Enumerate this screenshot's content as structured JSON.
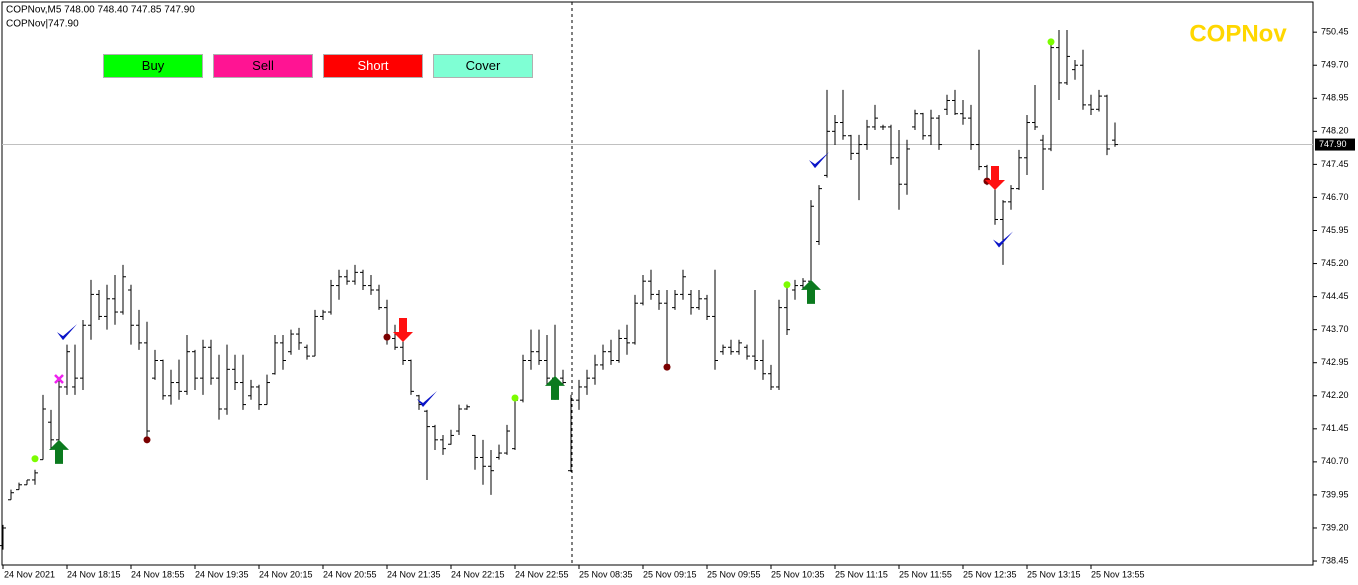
{
  "header": {
    "info": "COPNov,M5  748.00 748.40 747.85 747.90",
    "indicator": "COPNov|747.90"
  },
  "buttons": [
    {
      "label": "Buy",
      "color": "#00ff00",
      "text_color": "#000000"
    },
    {
      "label": "Sell",
      "color": "#ff1493",
      "text_color": "#000000"
    },
    {
      "label": "Short",
      "color": "#ff0000",
      "text_color": "#ffffff"
    },
    {
      "label": "Cover",
      "color": "#7fffd4",
      "text_color": "#000000"
    }
  ],
  "chart_data": {
    "type": "ohlc",
    "title": "COPNov",
    "title_color": "#ffd700",
    "color": "#000000",
    "ylim": [
      738.36,
      751.18
    ],
    "yticks": [
      738.45,
      {
        "value": 739.2,
        "label": "739.20"
      },
      739.95,
      {
        "value": 740.7,
        "label": "740.70"
      },
      741.45,
      {
        "value": 742.2,
        "label": "742.20"
      },
      742.95,
      {
        "value": 743.7,
        "label": "743.70"
      },
      744.45,
      {
        "value": 745.2,
        "label": "745.20"
      },
      745.95,
      {
        "value": 746.7,
        "label": "746.70"
      },
      747.45,
      {
        "value": 748.2,
        "label": "748.20"
      },
      748.95,
      {
        "value": 749.7,
        "label": "749.70"
      },
      750.45
    ],
    "current_price": {
      "value": 747.9,
      "label": "747.90"
    },
    "period_separator": 71,
    "categories": [
      "24 Nov 2021",
      null,
      null,
      null,
      null,
      null,
      null,
      null,
      "24 Nov 18:15",
      null,
      null,
      null,
      null,
      null,
      null,
      null,
      "24 Nov 18:55",
      null,
      null,
      null,
      null,
      null,
      null,
      null,
      "24 Nov 19:35",
      null,
      null,
      null,
      null,
      null,
      null,
      null,
      "24 Nov 20:15",
      null,
      null,
      null,
      null,
      null,
      null,
      null,
      "24 Nov 20:55",
      null,
      null,
      null,
      null,
      null,
      null,
      null,
      "24 Nov 21:35",
      null,
      null,
      null,
      null,
      null,
      null,
      null,
      "24 Nov 22:15",
      null,
      null,
      null,
      null,
      null,
      null,
      null,
      "24 Nov 22:55",
      null,
      null,
      null,
      null,
      null,
      null,
      null,
      "25 Nov 08:35",
      null,
      null,
      null,
      null,
      null,
      null,
      null,
      "25 Nov 09:15",
      null,
      null,
      null,
      null,
      null,
      null,
      null,
      "25 Nov 09:55",
      null,
      null,
      null,
      null,
      null,
      null,
      null,
      "25 Nov 10:35",
      null,
      null,
      null,
      null,
      null,
      null,
      null,
      "25 Nov 11:15",
      null,
      null,
      null,
      null,
      null,
      null,
      null,
      "25 Nov 11:55",
      null,
      null,
      null,
      null,
      null,
      null,
      null,
      "25 Nov 12:35",
      null,
      null,
      null,
      null,
      null,
      null,
      null,
      "25 Nov 13:15",
      null,
      null,
      null,
      null,
      null,
      null,
      null,
      "25 Nov 13:55",
      null,
      null,
      null
    ],
    "ohlc": [
      [
        738.8,
        739.27,
        738.71,
        739.2
      ],
      [
        739.84,
        740.07,
        739.84,
        740.0
      ],
      [
        740.07,
        740.23,
        740.07,
        740.18
      ],
      [
        740.18,
        740.29,
        740.18,
        740.29
      ],
      [
        740.29,
        740.52,
        740.18,
        740.45
      ],
      [
        740.75,
        742.22,
        740.75,
        741.9
      ],
      [
        741.6,
        741.88,
        740.97,
        741.2
      ],
      [
        741.2,
        742.56,
        741.2,
        742.4
      ],
      [
        742.4,
        743.36,
        742.22,
        743.2
      ],
      [
        742.4,
        743.36,
        742.22,
        742.6
      ],
      [
        742.6,
        743.92,
        742.33,
        743.8
      ],
      [
        743.8,
        744.83,
        743.47,
        744.5
      ],
      [
        744.5,
        744.6,
        743.92,
        744.0
      ],
      [
        744.0,
        744.72,
        743.7,
        744.4
      ],
      [
        744.4,
        744.94,
        743.81,
        744.1
      ],
      [
        744.1,
        745.17,
        744.04,
        744.9
      ],
      [
        744.6,
        744.72,
        743.36,
        743.8
      ],
      [
        743.8,
        744.15,
        743.24,
        743.4
      ],
      [
        743.4,
        743.88,
        741.2,
        741.4
      ],
      [
        742.6,
        743.24,
        742.56,
        743.0
      ],
      [
        743.0,
        743.02,
        742.11,
        742.2
      ],
      [
        742.2,
        742.79,
        742.0,
        742.5
      ],
      [
        742.5,
        743.02,
        742.11,
        742.3
      ],
      [
        742.3,
        743.58,
        742.22,
        743.2
      ],
      [
        743.2,
        743.24,
        742.33,
        742.6
      ],
      [
        742.6,
        743.47,
        742.22,
        743.3
      ],
      [
        743.3,
        743.47,
        742.45,
        742.6
      ],
      [
        742.6,
        743.13,
        741.66,
        741.9
      ],
      [
        741.9,
        743.36,
        741.77,
        742.8
      ],
      [
        742.8,
        743.13,
        742.33,
        742.5
      ],
      [
        742.5,
        743.13,
        741.88,
        742.0
      ],
      [
        742.2,
        742.56,
        742.11,
        742.4
      ],
      [
        742.4,
        742.45,
        741.88,
        742.0
      ],
      [
        742.0,
        742.68,
        742.0,
        742.5
      ],
      [
        742.7,
        743.58,
        742.68,
        743.4
      ],
      [
        743.4,
        743.58,
        742.79,
        743.0
      ],
      [
        743.2,
        743.7,
        743.13,
        743.6
      ],
      [
        743.6,
        743.74,
        743.24,
        743.4
      ],
      [
        743.3,
        743.36,
        743.02,
        743.1
      ],
      [
        743.1,
        744.15,
        743.1,
        744.0
      ],
      [
        744.0,
        744.15,
        743.92,
        744.1
      ],
      [
        744.1,
        744.83,
        744.04,
        744.7
      ],
      [
        744.7,
        745.06,
        744.38,
        744.9
      ],
      [
        744.9,
        745.06,
        744.72,
        744.8
      ],
      [
        744.8,
        745.17,
        744.72,
        745.0
      ],
      [
        745.0,
        745.06,
        744.6,
        744.7
      ],
      [
        744.7,
        744.94,
        744.49,
        744.6
      ],
      [
        744.6,
        744.72,
        744.15,
        744.2
      ],
      [
        744.2,
        744.38,
        743.36,
        743.5
      ],
      [
        743.5,
        743.81,
        743.24,
        743.3
      ],
      [
        743.3,
        743.47,
        742.9,
        743.0
      ],
      [
        743.0,
        743.02,
        742.22,
        742.3
      ],
      [
        742.2,
        742.22,
        741.88,
        742.0
      ],
      [
        741.85,
        741.88,
        740.29,
        741.5
      ],
      [
        741.5,
        741.54,
        740.97,
        741.2
      ],
      [
        741.2,
        741.31,
        740.86,
        741.0
      ],
      [
        741.1,
        741.43,
        741.09,
        741.3
      ],
      [
        741.4,
        742.0,
        741.31,
        741.9
      ],
      [
        741.9,
        742.0,
        741.88,
        741.95
      ],
      [
        741.3,
        741.31,
        740.52,
        740.8
      ],
      [
        740.8,
        741.2,
        740.18,
        740.6
      ],
      [
        740.6,
        740.97,
        739.95,
        740.5
      ],
      [
        740.8,
        741.09,
        740.75,
        740.9
      ],
      [
        740.9,
        741.54,
        740.86,
        741.4
      ],
      [
        741.0,
        742.15,
        740.97,
        742.1
      ],
      [
        742.1,
        743.13,
        742.05,
        743.0
      ],
      [
        743.0,
        743.7,
        742.79,
        743.2
      ],
      [
        743.2,
        743.7,
        742.9,
        743.0
      ],
      [
        743.0,
        743.58,
        742.45,
        742.6
      ],
      [
        742.6,
        743.81,
        742.11,
        742.2
      ],
      [
        742.6,
        742.79,
        742.45,
        742.5
      ],
      [
        740.5,
        742.22,
        740.47,
        742.1
      ],
      [
        742.1,
        742.56,
        741.88,
        742.4
      ],
      [
        742.4,
        742.79,
        742.22,
        742.6
      ],
      [
        742.6,
        743.13,
        742.45,
        742.9
      ],
      [
        742.9,
        743.36,
        742.79,
        743.2
      ],
      [
        743.2,
        743.47,
        742.9,
        743.0
      ],
      [
        743.0,
        743.7,
        742.95,
        743.5
      ],
      [
        743.5,
        743.81,
        743.13,
        743.4
      ],
      [
        743.4,
        744.49,
        743.36,
        744.3
      ],
      [
        744.3,
        744.94,
        744.25,
        744.8
      ],
      [
        744.8,
        745.06,
        744.38,
        744.5
      ],
      [
        744.5,
        744.6,
        744.15,
        744.3
      ],
      [
        744.3,
        744.6,
        742.83,
        742.9
      ],
      [
        744.2,
        744.6,
        744.15,
        744.5
      ],
      [
        744.5,
        745.06,
        744.38,
        744.9
      ],
      [
        744.5,
        744.6,
        744.04,
        744.2
      ],
      [
        744.2,
        744.6,
        744.15,
        744.4
      ],
      [
        744.4,
        744.49,
        743.92,
        744.0
      ],
      [
        744.0,
        745.06,
        742.79,
        743.0
      ],
      [
        743.2,
        743.36,
        743.13,
        743.3
      ],
      [
        743.3,
        743.47,
        743.13,
        743.2
      ],
      [
        743.2,
        743.47,
        743.13,
        743.4
      ],
      [
        743.3,
        743.36,
        743.02,
        743.1
      ],
      [
        743.1,
        744.6,
        742.79,
        743.0
      ],
      [
        743.0,
        743.47,
        742.56,
        742.7
      ],
      [
        742.7,
        742.9,
        742.33,
        742.4
      ],
      [
        742.4,
        744.38,
        742.33,
        744.2
      ],
      [
        744.2,
        744.72,
        743.58,
        743.7
      ],
      [
        744.6,
        744.83,
        744.38,
        744.7
      ],
      [
        744.7,
        744.87,
        744.6,
        744.8
      ],
      [
        744.8,
        746.64,
        744.75,
        746.5
      ],
      [
        745.7,
        746.98,
        745.62,
        746.9
      ],
      [
        747.2,
        749.14,
        747.15,
        748.2
      ],
      [
        748.2,
        748.57,
        747.89,
        748.4
      ],
      [
        748.4,
        749.14,
        748.01,
        748.1
      ],
      [
        748.1,
        748.12,
        747.55,
        747.7
      ],
      [
        747.7,
        748.12,
        746.64,
        747.9
      ],
      [
        747.9,
        748.46,
        747.78,
        748.3
      ],
      [
        748.3,
        748.8,
        748.23,
        748.5
      ],
      [
        748.3,
        748.35,
        748.23,
        748.3
      ],
      [
        748.3,
        748.35,
        747.44,
        747.6
      ],
      [
        747.6,
        748.23,
        746.42,
        747.0
      ],
      [
        747.0,
        748.01,
        746.76,
        747.8
      ],
      [
        748.3,
        748.69,
        748.23,
        748.6
      ],
      [
        748.6,
        748.62,
        748.01,
        748.1
      ],
      [
        748.1,
        748.69,
        747.89,
        748.5
      ],
      [
        748.5,
        748.57,
        747.78,
        747.9
      ],
      [
        748.7,
        749.03,
        748.57,
        748.9
      ],
      [
        748.9,
        749.14,
        748.57,
        748.6
      ],
      [
        748.6,
        748.91,
        748.35,
        748.5
      ],
      [
        748.5,
        748.8,
        747.78,
        747.9
      ],
      [
        747.9,
        750.05,
        747.32,
        747.4
      ],
      [
        747.4,
        747.44,
        746.98,
        747.1
      ],
      [
        747.1,
        747.32,
        746.08,
        746.2
      ],
      [
        746.2,
        746.64,
        745.17,
        746.6
      ],
      [
        746.6,
        746.98,
        746.42,
        746.9
      ],
      [
        746.9,
        747.78,
        746.87,
        747.6
      ],
      [
        747.6,
        748.57,
        747.21,
        748.4
      ],
      [
        748.4,
        749.25,
        748.23,
        748.3
      ],
      [
        748.0,
        748.12,
        746.87,
        747.8
      ],
      [
        747.8,
        750.23,
        747.75,
        750.1
      ],
      [
        750.1,
        750.5,
        748.91,
        749.3
      ],
      [
        749.3,
        750.5,
        749.25,
        749.9
      ],
      [
        749.6,
        749.82,
        749.37,
        749.7
      ],
      [
        749.7,
        750.05,
        748.69,
        748.8
      ],
      [
        748.8,
        749.03,
        748.57,
        748.7
      ],
      [
        748.7,
        749.14,
        748.65,
        749.0
      ],
      [
        749.0,
        749.03,
        747.66,
        747.8
      ],
      [
        748.0,
        748.4,
        747.85,
        747.9
      ]
    ],
    "markers": [
      {
        "kind": "dot",
        "color": "#7cfc00",
        "bar": 4,
        "price": 740.77
      },
      {
        "kind": "up-arrow",
        "color": "#0b7a1e",
        "bar": 7,
        "price": 741.2
      },
      {
        "kind": "cross",
        "color": "#ee22ee",
        "bar": 7,
        "price": 742.58
      },
      {
        "kind": "check",
        "color": "#0a14c8",
        "bar": 8,
        "price": 743.6
      },
      {
        "kind": "dot",
        "color": "#7a0000",
        "bar": 18,
        "price": 741.2
      },
      {
        "kind": "dot",
        "color": "#7a0000",
        "bar": 48,
        "price": 743.53
      },
      {
        "kind": "down-arrow",
        "color": "#ff1010",
        "bar": 50,
        "price": 743.42
      },
      {
        "kind": "check",
        "color": "#0a14c8",
        "bar": 53,
        "price": 742.08
      },
      {
        "kind": "dot",
        "color": "#7cfc00",
        "bar": 64,
        "price": 742.15
      },
      {
        "kind": "up-arrow",
        "color": "#0b7a1e",
        "bar": 69,
        "price": 742.65
      },
      {
        "kind": "dot",
        "color": "#7a0000",
        "bar": 83,
        "price": 742.85
      },
      {
        "kind": "dot",
        "color": "#7cfc00",
        "bar": 98,
        "price": 744.72
      },
      {
        "kind": "up-arrow",
        "color": "#0b7a1e",
        "bar": 101,
        "price": 744.83
      },
      {
        "kind": "check",
        "color": "#0a14c8",
        "bar": 102,
        "price": 747.5
      },
      {
        "kind": "dot",
        "color": "#7a0000",
        "bar": 123,
        "price": 747.07
      },
      {
        "kind": "down-arrow",
        "color": "#ff1010",
        "bar": 124,
        "price": 746.87
      },
      {
        "kind": "check",
        "color": "#0a14c8",
        "bar": 125,
        "price": 745.7
      },
      {
        "kind": "dot",
        "color": "#7cfc00",
        "bar": 131,
        "price": 750.23
      }
    ]
  }
}
